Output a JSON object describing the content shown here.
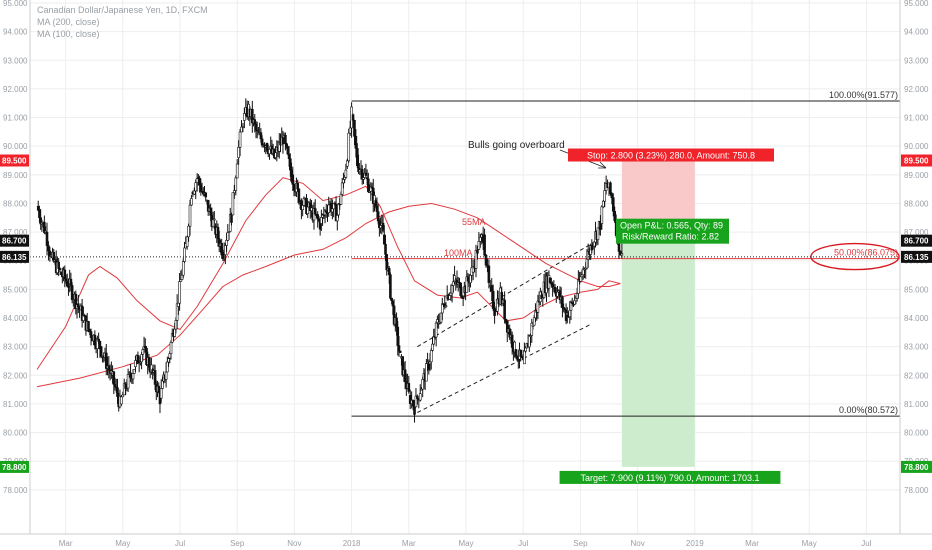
{
  "legend": {
    "symbol": "Canadian Dollar/Japanese Yen, 1D, FXCM",
    "ma200": "MA (200, close)",
    "ma100": "MA (100, close)"
  },
  "colors": {
    "candle": "#111111",
    "ma": "#e0393e",
    "stop_zone": "#f9c9c9",
    "target_zone": "#cdeccd",
    "stop_label": "#f0232b",
    "target_label": "#18a31c",
    "grid": "#eeeeee"
  },
  "chart_data": {
    "type": "candlestick",
    "y_axis": {
      "ylim": [
        77.4,
        95.0
      ],
      "ticks": [
        "95.000",
        "94.000",
        "93.000",
        "92.000",
        "91.000",
        "90.000",
        "89.000",
        "88.000",
        "87.000",
        "86.000",
        "85.000",
        "84.000",
        "83.000",
        "82.000",
        "81.000",
        "80.000",
        "79.000",
        "78.000"
      ],
      "right_markers": [
        {
          "label": "89.500",
          "value": 89.5,
          "color": "#f0232b"
        },
        {
          "label": "86.700",
          "value": 86.7,
          "color": "#111111"
        },
        {
          "label": "86.135",
          "value": 86.135,
          "color": "#111111"
        },
        {
          "label": "78.800",
          "value": 78.8,
          "color": "#18a31c"
        }
      ],
      "left_markers": [
        {
          "label": "89.500",
          "value": 89.5,
          "color": "#f0232b"
        },
        {
          "label": "86.700",
          "value": 86.7,
          "color": "#111111"
        },
        {
          "label": "86.135",
          "value": 86.135,
          "color": "#111111"
        },
        {
          "label": "78.800",
          "value": 78.8,
          "color": "#18a31c"
        }
      ]
    },
    "x_axis": {
      "ticks": [
        {
          "label": "Mar",
          "t": 1.0
        },
        {
          "label": "May",
          "t": 3.0
        },
        {
          "label": "Jul",
          "t": 5.0
        },
        {
          "label": "Sep",
          "t": 7.0
        },
        {
          "label": "Nov",
          "t": 9.0
        },
        {
          "label": "2018",
          "t": 11.0
        },
        {
          "label": "Mar",
          "t": 13.0
        },
        {
          "label": "May",
          "t": 15.0
        },
        {
          "label": "Jul",
          "t": 17.0
        },
        {
          "label": "Sep",
          "t": 19.0
        },
        {
          "label": "Nov",
          "t": 21.0
        },
        {
          "label": "2019",
          "t": 23.0
        },
        {
          "label": "Mar",
          "t": 25.0
        },
        {
          "label": "May",
          "t": 27.0
        },
        {
          "label": "Jul",
          "t": 29.0
        }
      ]
    },
    "price_path": [
      [
        0.0,
        87.9
      ],
      [
        0.3,
        87.0
      ],
      [
        0.5,
        86.1
      ],
      [
        0.8,
        85.6
      ],
      [
        1.1,
        85.2
      ],
      [
        1.4,
        84.5
      ],
      [
        1.8,
        83.6
      ],
      [
        2.2,
        83.0
      ],
      [
        2.6,
        82.0
      ],
      [
        2.9,
        81.0
      ],
      [
        3.1,
        81.6
      ],
      [
        3.4,
        82.3
      ],
      [
        3.7,
        82.9
      ],
      [
        4.0,
        82.2
      ],
      [
        4.3,
        81.2
      ],
      [
        4.6,
        82.6
      ],
      [
        4.9,
        84.4
      ],
      [
        5.2,
        86.5
      ],
      [
        5.4,
        88.4
      ],
      [
        5.6,
        88.9
      ],
      [
        5.9,
        88.1
      ],
      [
        6.2,
        87.2
      ],
      [
        6.5,
        86.3
      ],
      [
        6.8,
        87.6
      ],
      [
        7.0,
        89.6
      ],
      [
        7.2,
        90.9
      ],
      [
        7.4,
        91.3
      ],
      [
        7.7,
        90.4
      ],
      [
        8.0,
        90.1
      ],
      [
        8.3,
        89.6
      ],
      [
        8.6,
        90.3
      ],
      [
        8.9,
        89.0
      ],
      [
        9.2,
        88.1
      ],
      [
        9.6,
        87.7
      ],
      [
        9.9,
        87.3
      ],
      [
        10.2,
        88.0
      ],
      [
        10.5,
        87.6
      ],
      [
        10.8,
        89.3
      ],
      [
        11.0,
        91.1
      ],
      [
        11.2,
        89.4
      ],
      [
        11.5,
        88.9
      ],
      [
        11.8,
        88.1
      ],
      [
        12.1,
        86.9
      ],
      [
        12.4,
        84.6
      ],
      [
        12.7,
        82.6
      ],
      [
        13.0,
        81.3
      ],
      [
        13.2,
        80.9
      ],
      [
        13.4,
        81.5
      ],
      [
        13.7,
        82.4
      ],
      [
        14.0,
        83.8
      ],
      [
        14.3,
        84.7
      ],
      [
        14.6,
        85.3
      ],
      [
        14.9,
        84.9
      ],
      [
        15.2,
        85.6
      ],
      [
        15.4,
        86.4
      ],
      [
        15.6,
        86.9
      ],
      [
        15.8,
        85.1
      ],
      [
        16.0,
        84.3
      ],
      [
        16.2,
        84.9
      ],
      [
        16.4,
        83.9
      ],
      [
        16.7,
        82.9
      ],
      [
        17.0,
        82.4
      ],
      [
        17.3,
        83.7
      ],
      [
        17.6,
        84.8
      ],
      [
        17.9,
        85.4
      ],
      [
        18.2,
        84.9
      ],
      [
        18.5,
        84.1
      ],
      [
        18.8,
        84.6
      ],
      [
        19.1,
        85.7
      ],
      [
        19.4,
        86.6
      ],
      [
        19.7,
        87.3
      ],
      [
        19.9,
        88.7
      ],
      [
        20.1,
        88.2
      ],
      [
        20.3,
        86.8
      ],
      [
        20.45,
        86.1
      ]
    ],
    "moving_averages": [
      {
        "name": "55MA",
        "points": [
          [
            0,
            82.2
          ],
          [
            1.0,
            83.7
          ],
          [
            1.8,
            85.5
          ],
          [
            2.2,
            85.8
          ],
          [
            2.8,
            85.4
          ],
          [
            3.5,
            84.6
          ],
          [
            4.3,
            83.9
          ],
          [
            5.0,
            83.6
          ],
          [
            5.6,
            84.4
          ],
          [
            6.5,
            85.9
          ],
          [
            7.3,
            87.4
          ],
          [
            8.0,
            88.3
          ],
          [
            8.6,
            88.9
          ],
          [
            9.3,
            88.7
          ],
          [
            10.0,
            88.1
          ],
          [
            10.8,
            88.3
          ],
          [
            11.5,
            88.6
          ],
          [
            12.0,
            87.9
          ],
          [
            12.6,
            86.5
          ],
          [
            13.2,
            85.3
          ],
          [
            14.0,
            84.8
          ],
          [
            14.8,
            84.7
          ],
          [
            15.4,
            84.9
          ],
          [
            15.9,
            84.4
          ],
          [
            16.4,
            83.9
          ],
          [
            17.0,
            84.0
          ],
          [
            17.6,
            84.4
          ],
          [
            18.2,
            84.7
          ],
          [
            19.0,
            84.9
          ],
          [
            19.6,
            85.0
          ],
          [
            20.0,
            85.3
          ],
          [
            20.4,
            85.2
          ]
        ]
      },
      {
        "name": "100MA",
        "points": [
          [
            0,
            81.6
          ],
          [
            1.5,
            81.9
          ],
          [
            3.0,
            82.3
          ],
          [
            4.2,
            82.7
          ],
          [
            5.0,
            83.4
          ],
          [
            5.8,
            84.3
          ],
          [
            6.5,
            85.1
          ],
          [
            7.2,
            85.5
          ],
          [
            8.0,
            85.8
          ],
          [
            9.0,
            86.2
          ],
          [
            10.0,
            86.4
          ],
          [
            10.8,
            86.8
          ],
          [
            11.5,
            87.3
          ],
          [
            12.3,
            87.7
          ],
          [
            13.0,
            87.9
          ],
          [
            13.8,
            88.0
          ],
          [
            14.6,
            87.8
          ],
          [
            15.4,
            87.5
          ],
          [
            16.0,
            87.1
          ],
          [
            16.6,
            86.7
          ],
          [
            17.2,
            86.3
          ],
          [
            17.8,
            85.9
          ],
          [
            18.4,
            85.6
          ],
          [
            19.0,
            85.3
          ],
          [
            19.6,
            85.1
          ],
          [
            20.0,
            85.1
          ],
          [
            20.4,
            85.2
          ]
        ]
      }
    ],
    "fib_levels": [
      {
        "label": "100.00%(91.577)",
        "value": 91.577,
        "t_start": 11.0
      },
      {
        "label": "50.00%(86.075)",
        "value": 86.075,
        "t_start": 11.0
      },
      {
        "label": "0.00%(80.572)",
        "value": 80.572,
        "t_start": 11.0
      }
    ],
    "channel": {
      "lower": [
        [
          13.3,
          80.7
        ],
        [
          19.4,
          83.8
        ]
      ],
      "upper": [
        [
          13.3,
          83.0
        ],
        [
          19.4,
          86.6
        ]
      ]
    },
    "last_price": {
      "value": 86.135
    },
    "position": {
      "t_start": 20.45,
      "t_end": 23.0,
      "entry": 86.7,
      "stop": 89.5,
      "target": 78.8,
      "stop_text": "Stop: 2.800 (3.23%) 280.0, Amount: 750.8",
      "target_text": "Target: 7.900 (9.11%) 790.0, Amount: 1703.1",
      "pnl_text": "Open P&L: 0.565, Qty: 89",
      "rr_text": "Risk/Reward Ratio: 2.82"
    },
    "annotations": {
      "bulls": "Bulls going overboard",
      "ma55": "55MA",
      "ma100": "100MA"
    }
  }
}
